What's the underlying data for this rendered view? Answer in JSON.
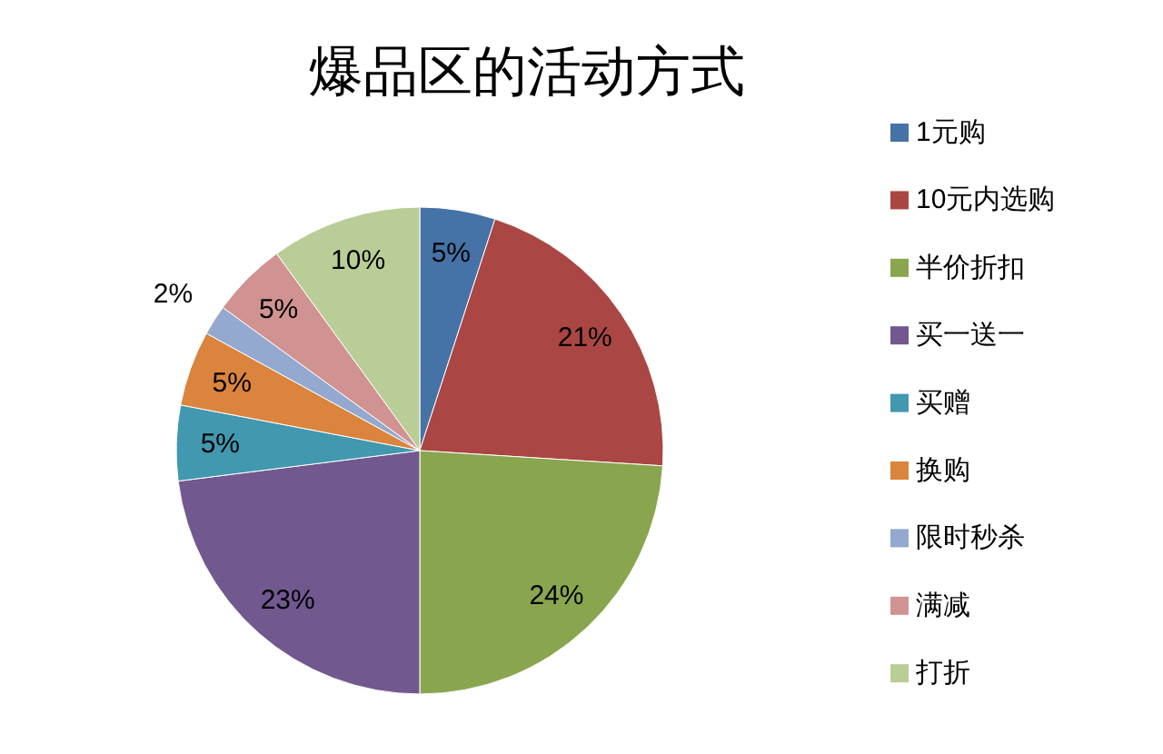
{
  "chart_data": {
    "type": "pie",
    "title": "爆品区的活动方式",
    "categories": [
      "1元购",
      "10元内选购",
      "半价折扣",
      "买一送一",
      "买赠",
      "换购",
      "限时秒杀",
      "满减",
      "打折"
    ],
    "values": [
      5,
      21,
      24,
      23,
      5,
      5,
      2,
      5,
      10
    ],
    "value_labels": [
      "5%",
      "21%",
      "24%",
      "23%",
      "5%",
      "5%",
      "2%",
      "5%",
      "10%"
    ],
    "colors": [
      "#4572a7",
      "#aa4643",
      "#89a54e",
      "#71588f",
      "#4198af",
      "#db843d",
      "#93a9cf",
      "#d19392",
      "#b9cd96"
    ],
    "legend": "right"
  }
}
